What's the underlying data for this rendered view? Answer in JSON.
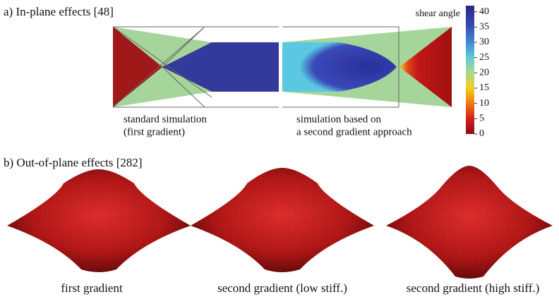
{
  "panel_a": {
    "title": "a) In-plane effects [48]",
    "left_caption": [
      "standard simulation",
      "(first gradient)"
    ],
    "right_caption": [
      "simulation based on",
      "a second gradient approach"
    ],
    "colorbar": {
      "label": "shear angle",
      "lim": [
        0,
        42
      ],
      "ticks": [
        0,
        5,
        10,
        15,
        20,
        25,
        30,
        35,
        40
      ]
    }
  },
  "panel_b": {
    "title": "b) Out-of-plane effects [282]",
    "captions": [
      "first gradient",
      "second gradient (low stiff.)",
      "second gradient (high stiff.)"
    ]
  }
}
